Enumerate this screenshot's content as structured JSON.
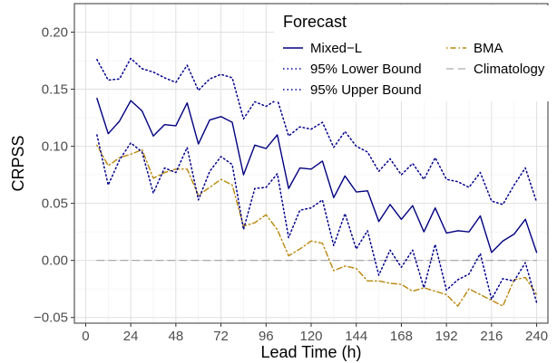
{
  "chart_data": {
    "type": "line",
    "xlabel": "Lead Time (h)",
    "ylabel": "CRPSS",
    "xlim": [
      -6,
      246
    ],
    "ylim": [
      -0.055,
      0.225
    ],
    "xticks": [
      0,
      24,
      48,
      72,
      96,
      120,
      144,
      168,
      192,
      216,
      240
    ],
    "yticks": [
      -0.05,
      0.0,
      0.05,
      0.1,
      0.15,
      0.2
    ],
    "ytick_labels": [
      "−0.05",
      "0.00",
      "0.05",
      "0.10",
      "0.15",
      "0.20"
    ],
    "grid": true,
    "legend": {
      "title": "Forecast",
      "placement": "top-right"
    },
    "x": [
      6,
      12,
      18,
      24,
      30,
      36,
      42,
      48,
      54,
      60,
      66,
      72,
      78,
      84,
      90,
      96,
      102,
      108,
      114,
      120,
      126,
      132,
      138,
      144,
      150,
      156,
      162,
      168,
      174,
      180,
      186,
      192,
      198,
      204,
      210,
      216,
      222,
      228,
      234,
      240
    ],
    "series": [
      {
        "name": "Mixed−L",
        "color": "#000080",
        "dash": "solid",
        "values": [
          0.142,
          0.111,
          0.122,
          0.14,
          0.131,
          0.109,
          0.119,
          0.118,
          0.138,
          0.102,
          0.123,
          0.126,
          0.121,
          0.075,
          0.101,
          0.098,
          0.11,
          0.063,
          0.081,
          0.08,
          0.087,
          0.055,
          0.074,
          0.06,
          0.061,
          0.034,
          0.049,
          0.036,
          0.048,
          0.025,
          0.046,
          0.024,
          0.026,
          0.025,
          0.039,
          0.007,
          0.017,
          0.023,
          0.036,
          0.007
        ]
      },
      {
        "name": "95% Lower Bound",
        "color": "#00008b",
        "dash": "dotted",
        "values": [
          0.11,
          0.066,
          0.088,
          0.103,
          0.095,
          0.059,
          0.081,
          0.077,
          0.099,
          0.053,
          0.078,
          0.091,
          0.084,
          0.027,
          0.063,
          0.064,
          0.076,
          0.02,
          0.044,
          0.046,
          0.053,
          0.013,
          0.041,
          0.01,
          0.026,
          -0.013,
          0.009,
          -0.006,
          0.009,
          -0.024,
          0.014,
          -0.026,
          -0.017,
          -0.012,
          0.006,
          -0.034,
          -0.016,
          -0.018,
          -0.002,
          -0.037
        ]
      },
      {
        "name": "95% Upper Bound",
        "color": "#00008b",
        "dash": "dotted",
        "values": [
          0.176,
          0.158,
          0.159,
          0.177,
          0.168,
          0.165,
          0.16,
          0.156,
          0.171,
          0.149,
          0.159,
          0.163,
          0.16,
          0.124,
          0.139,
          0.135,
          0.141,
          0.109,
          0.117,
          0.115,
          0.121,
          0.099,
          0.113,
          0.1,
          0.095,
          0.078,
          0.089,
          0.075,
          0.085,
          0.071,
          0.09,
          0.071,
          0.069,
          0.064,
          0.077,
          0.052,
          0.049,
          0.066,
          0.081,
          0.051
        ]
      },
      {
        "name": "BMA",
        "color": "#b8860b",
        "dash": "dotdash",
        "values": [
          0.101,
          0.083,
          0.09,
          0.093,
          0.097,
          0.072,
          0.077,
          0.08,
          0.08,
          0.057,
          0.064,
          0.071,
          0.066,
          0.03,
          0.033,
          0.04,
          0.027,
          0.004,
          0.01,
          0.017,
          0.015,
          -0.009,
          -0.005,
          -0.007,
          -0.018,
          -0.018,
          -0.02,
          -0.021,
          -0.027,
          -0.024,
          -0.027,
          -0.03,
          -0.04,
          -0.025,
          -0.03,
          -0.035,
          -0.04,
          -0.017,
          -0.015,
          -0.03
        ]
      },
      {
        "name": "Climatology",
        "color": "#aaaaaa",
        "dash": "dashed",
        "values": [
          0,
          0,
          0,
          0,
          0,
          0,
          0,
          0,
          0,
          0,
          0,
          0,
          0,
          0,
          0,
          0,
          0,
          0,
          0,
          0,
          0,
          0,
          0,
          0,
          0,
          0,
          0,
          0,
          0,
          0,
          0,
          0,
          0,
          0,
          0,
          0,
          0,
          0,
          0,
          0
        ]
      }
    ]
  }
}
